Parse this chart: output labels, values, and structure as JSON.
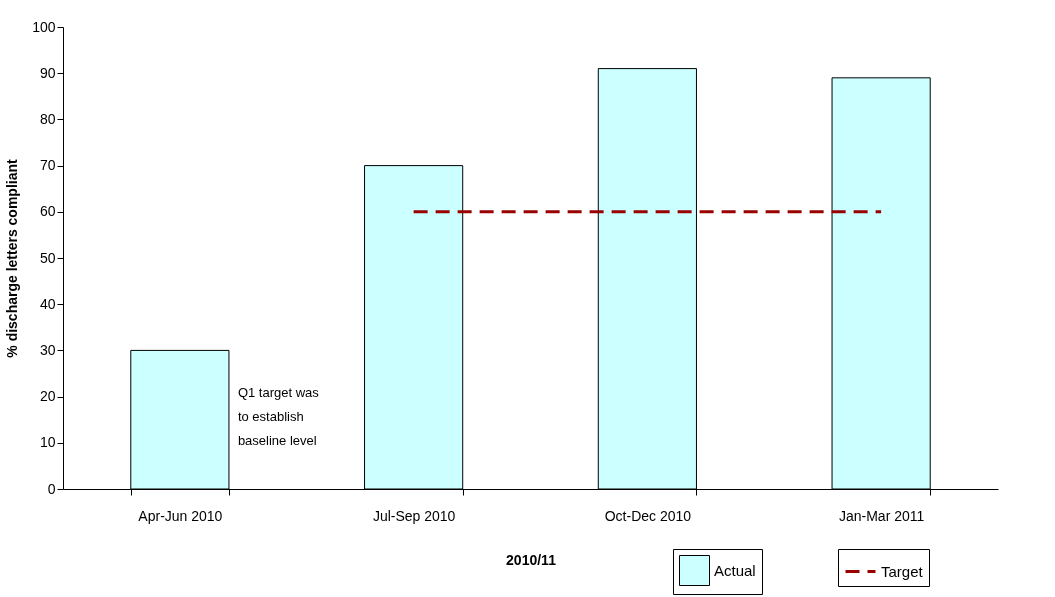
{
  "chart_data": {
    "type": "bar",
    "xlabel": "2010/11",
    "ylabel": "% discharge letters compliant",
    "categories": [
      "Apr-Jun 2010",
      "Jul-Sep 2010",
      "Oct-Dec 2010",
      "Jan-Mar 2011"
    ],
    "series": [
      {
        "name": "Actual",
        "color": "#ccffff",
        "values": [
          30,
          70,
          91,
          89
        ]
      },
      {
        "name": "Target",
        "type": "line",
        "color": "#990000",
        "line_style": "dashed",
        "values": [
          null,
          60,
          60,
          60
        ]
      }
    ],
    "ylim": [
      0,
      100
    ],
    "yticks": [
      0,
      10,
      20,
      30,
      40,
      50,
      60,
      70,
      80,
      90,
      100
    ],
    "legend": "bottom right",
    "annotations": [
      "Q1 target was\nto establish\nbaseline level"
    ]
  }
}
